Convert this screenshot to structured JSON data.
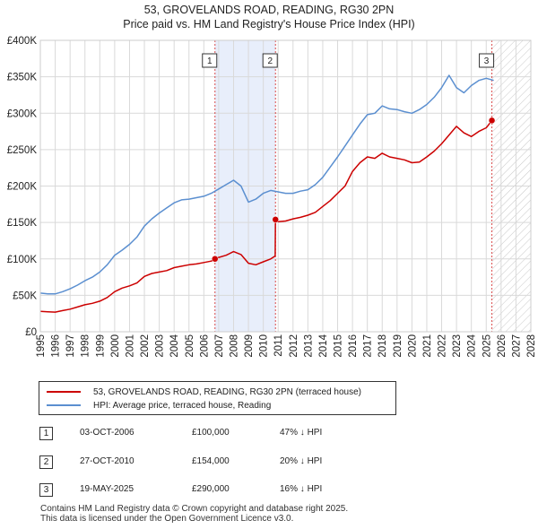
{
  "title_line1": "53, GROVELANDS ROAD, READING, RG30 2PN",
  "title_line2": "Price paid vs. HM Land Registry's House Price Index (HPI)",
  "colors": {
    "property": "#cc0000",
    "hpi": "#5b8fd0",
    "shade": "#e8eefb",
    "grid": "#d9d9d9",
    "marker_line": "#cc0000"
  },
  "chart_data": {
    "type": "line",
    "title": "Price paid vs. HM Land Registry's House Price Index (HPI)",
    "xlim": [
      1995,
      2028
    ],
    "ylim": [
      0,
      400000
    ],
    "yticks": [
      0,
      50000,
      100000,
      150000,
      200000,
      250000,
      300000,
      350000,
      400000
    ],
    "ytick_labels": [
      "£0",
      "£50K",
      "£100K",
      "£150K",
      "£200K",
      "£250K",
      "£300K",
      "£350K",
      "£400K"
    ],
    "xticks": [
      1995,
      1996,
      1997,
      1998,
      1999,
      2000,
      2001,
      2002,
      2003,
      2004,
      2005,
      2006,
      2007,
      2008,
      2009,
      2010,
      2011,
      2012,
      2013,
      2014,
      2015,
      2016,
      2017,
      2018,
      2019,
      2020,
      2021,
      2022,
      2023,
      2024,
      2025,
      2026,
      2027,
      2028
    ],
    "grid": true,
    "shaded_span": [
      2006.75,
      2010.82
    ],
    "hatched_from": 2025.38,
    "series": [
      {
        "name": "53, GROVELANDS ROAD, READING, RG30 2PN (terraced house)",
        "color": "#cc0000",
        "x": [
          1995,
          1995.5,
          1996,
          1996.5,
          1997,
          1997.5,
          1998,
          1998.5,
          1999,
          1999.5,
          2000,
          2000.5,
          2001,
          2001.5,
          2002,
          2002.5,
          2003,
          2003.5,
          2004,
          2004.5,
          2005,
          2005.5,
          2006,
          2006.5,
          2006.75,
          2007,
          2007.5,
          2008,
          2008.5,
          2009,
          2009.5,
          2010,
          2010.5,
          2010.8,
          2010.82,
          2011,
          2011.5,
          2012,
          2012.5,
          2013,
          2013.5,
          2014,
          2014.5,
          2015,
          2015.5,
          2016,
          2016.5,
          2017,
          2017.5,
          2018,
          2018.5,
          2019,
          2019.5,
          2020,
          2020.5,
          2021,
          2021.5,
          2022,
          2022.5,
          2023,
          2023.5,
          2024,
          2024.5,
          2025,
          2025.38
        ],
        "y": [
          28000,
          27500,
          27000,
          29000,
          31000,
          34000,
          37000,
          39000,
          42000,
          47000,
          55000,
          60000,
          63000,
          67000,
          76000,
          80000,
          82000,
          84000,
          88000,
          90000,
          92000,
          93000,
          95000,
          97000,
          100000,
          102000,
          105000,
          110000,
          106000,
          94000,
          92000,
          96000,
          100000,
          104000,
          154000,
          151000,
          152000,
          155000,
          157000,
          160000,
          164000,
          172000,
          180000,
          190000,
          200000,
          220000,
          232000,
          240000,
          238000,
          245000,
          240000,
          238000,
          236000,
          232000,
          233000,
          240000,
          248000,
          258000,
          270000,
          282000,
          273000,
          268000,
          275000,
          280000,
          290000
        ]
      },
      {
        "name": "HPI: Average price, terraced house, Reading",
        "color": "#5b8fd0",
        "x": [
          1995,
          1995.5,
          1996,
          1996.5,
          1997,
          1997.5,
          1998,
          1998.5,
          1999,
          1999.5,
          2000,
          2000.5,
          2001,
          2001.5,
          2002,
          2002.5,
          2003,
          2003.5,
          2004,
          2004.5,
          2005,
          2005.5,
          2006,
          2006.5,
          2007,
          2007.5,
          2008,
          2008.5,
          2009,
          2009.5,
          2010,
          2010.5,
          2011,
          2011.5,
          2012,
          2012.5,
          2013,
          2013.5,
          2014,
          2014.5,
          2015,
          2015.5,
          2016,
          2016.5,
          2017,
          2017.5,
          2018,
          2018.5,
          2019,
          2019.5,
          2020,
          2020.5,
          2021,
          2021.5,
          2022,
          2022.5,
          2023,
          2023.5,
          2024,
          2024.5,
          2025,
          2025.5
        ],
        "y": [
          53000,
          52000,
          52000,
          55000,
          59000,
          64000,
          70000,
          75000,
          82000,
          92000,
          105000,
          112000,
          120000,
          130000,
          145000,
          155000,
          163000,
          170000,
          177000,
          181000,
          182000,
          184000,
          186000,
          190000,
          196000,
          202000,
          208000,
          200000,
          178000,
          182000,
          190000,
          194000,
          192000,
          190000,
          190000,
          193000,
          195000,
          202000,
          212000,
          226000,
          240000,
          255000,
          270000,
          285000,
          298000,
          300000,
          310000,
          306000,
          305000,
          302000,
          300000,
          305000,
          312000,
          322000,
          335000,
          352000,
          335000,
          328000,
          338000,
          345000,
          348000,
          345000
        ]
      }
    ],
    "markers": [
      {
        "label": "1",
        "x": 2006.75,
        "y": 100000
      },
      {
        "label": "2",
        "x": 2010.82,
        "y": 154000
      },
      {
        "label": "3",
        "x": 2025.38,
        "y": 290000
      }
    ]
  },
  "legend": {
    "property_label": "53, GROVELANDS ROAD, READING, RG30 2PN (terraced house)",
    "hpi_label": "HPI: Average price, terraced house, Reading"
  },
  "transactions": [
    {
      "num": "1",
      "date": "03-OCT-2006",
      "price": "£100,000",
      "hpi": "47% ↓ HPI"
    },
    {
      "num": "2",
      "date": "27-OCT-2010",
      "price": "£154,000",
      "hpi": "20% ↓ HPI"
    },
    {
      "num": "3",
      "date": "19-MAY-2025",
      "price": "£290,000",
      "hpi": "16% ↓ HPI"
    }
  ],
  "footer": {
    "line1": "Contains HM Land Registry data © Crown copyright and database right 2025.",
    "line2": "This data is licensed under the Open Government Licence v3.0."
  }
}
